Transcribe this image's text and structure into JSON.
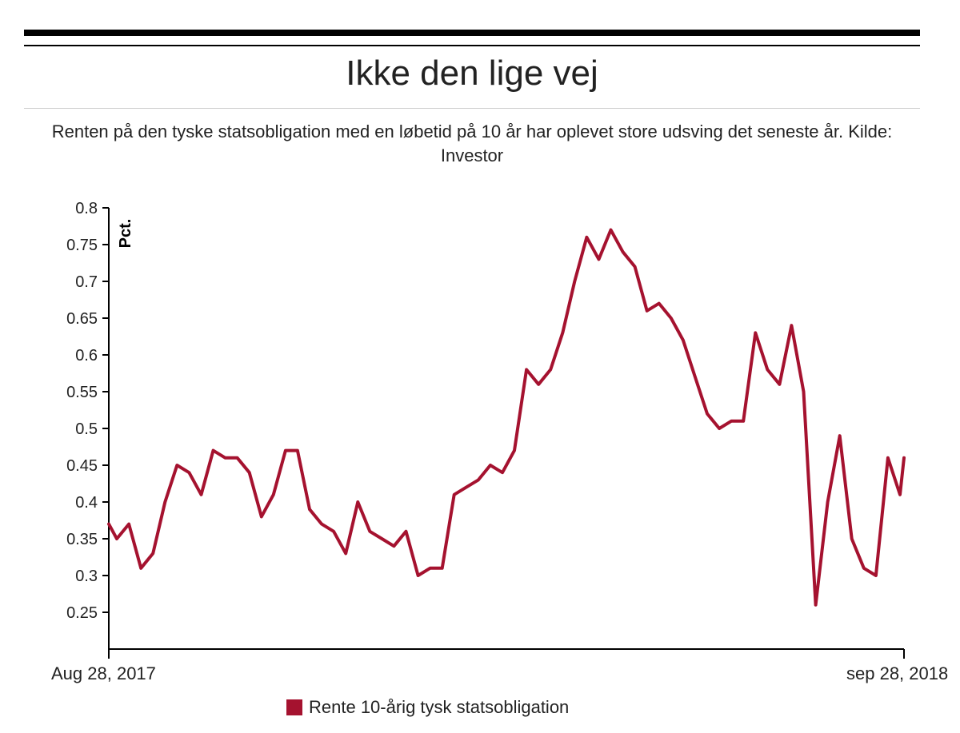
{
  "header": {
    "title": "Ikke den lige vej",
    "subtitle": "Renten på den tyske statsobligation med en løbetid på 10 år har oplevet store udsving det seneste år. Kilde: Investor"
  },
  "colors": {
    "series": "#a5122f",
    "axis": "#000000",
    "text": "#222222"
  },
  "chart_data": {
    "type": "line",
    "title": "Ikke den lige vej",
    "ylabel": "Pct.",
    "xlabel": "",
    "ylim": [
      0.2,
      0.8
    ],
    "yticks": [
      "0.8",
      "0.75",
      "0.7",
      "0.65",
      "0.6",
      "0.55",
      "0.5",
      "0.45",
      "0.4",
      "0.35",
      "0.3",
      "0.25"
    ],
    "ytick_values": [
      0.8,
      0.75,
      0.7,
      0.65,
      0.6,
      0.55,
      0.5,
      0.45,
      0.4,
      0.35,
      0.3,
      0.25
    ],
    "xticks": [
      "Aug 28, 2017",
      "sep 28, 2018"
    ],
    "xlim": [
      "2017-08-28",
      "2018-09-28"
    ],
    "grid": false,
    "legend_position": "bottom",
    "series": [
      {
        "name": "Rente 10-årig tysk statsobligation",
        "color": "#a5122f",
        "x": [
          "2017-08-28",
          "2017-09-01",
          "2017-09-07",
          "2017-09-13",
          "2017-09-19",
          "2017-09-25",
          "2017-10-01",
          "2017-10-07",
          "2017-10-13",
          "2017-10-19",
          "2017-10-25",
          "2017-10-31",
          "2017-11-06",
          "2017-11-12",
          "2017-11-18",
          "2017-11-24",
          "2017-11-30",
          "2017-12-06",
          "2017-12-12",
          "2017-12-18",
          "2017-12-24",
          "2017-12-30",
          "2018-01-05",
          "2018-01-11",
          "2018-01-17",
          "2018-01-23",
          "2018-01-29",
          "2018-02-04",
          "2018-02-10",
          "2018-02-16",
          "2018-02-22",
          "2018-02-28",
          "2018-03-06",
          "2018-03-12",
          "2018-03-18",
          "2018-03-24",
          "2018-03-30",
          "2018-04-05",
          "2018-04-11",
          "2018-04-17",
          "2018-04-23",
          "2018-04-29",
          "2018-05-05",
          "2018-05-11",
          "2018-05-17",
          "2018-05-23",
          "2018-05-29",
          "2018-06-04",
          "2018-06-10",
          "2018-06-16",
          "2018-06-22",
          "2018-06-28",
          "2018-07-04",
          "2018-07-10",
          "2018-07-16",
          "2018-07-22",
          "2018-07-28",
          "2018-08-03",
          "2018-08-09",
          "2018-08-15",
          "2018-08-21",
          "2018-08-27",
          "2018-09-02",
          "2018-09-08",
          "2018-09-14",
          "2018-09-20",
          "2018-09-26",
          "2018-09-28"
        ],
        "values": [
          0.37,
          0.35,
          0.37,
          0.31,
          0.33,
          0.4,
          0.45,
          0.44,
          0.41,
          0.47,
          0.46,
          0.46,
          0.44,
          0.38,
          0.41,
          0.47,
          0.47,
          0.39,
          0.37,
          0.36,
          0.33,
          0.4,
          0.36,
          0.35,
          0.34,
          0.36,
          0.3,
          0.31,
          0.31,
          0.41,
          0.42,
          0.43,
          0.45,
          0.44,
          0.47,
          0.58,
          0.56,
          0.58,
          0.63,
          0.7,
          0.76,
          0.73,
          0.77,
          0.74,
          0.72,
          0.66,
          0.67,
          0.65,
          0.62,
          0.57,
          0.52,
          0.5,
          0.51,
          0.51,
          0.63,
          0.58,
          0.56,
          0.64,
          0.55,
          0.26,
          0.4,
          0.49,
          0.35,
          0.31,
          0.3,
          0.46,
          0.41,
          0.46
        ]
      }
    ]
  }
}
